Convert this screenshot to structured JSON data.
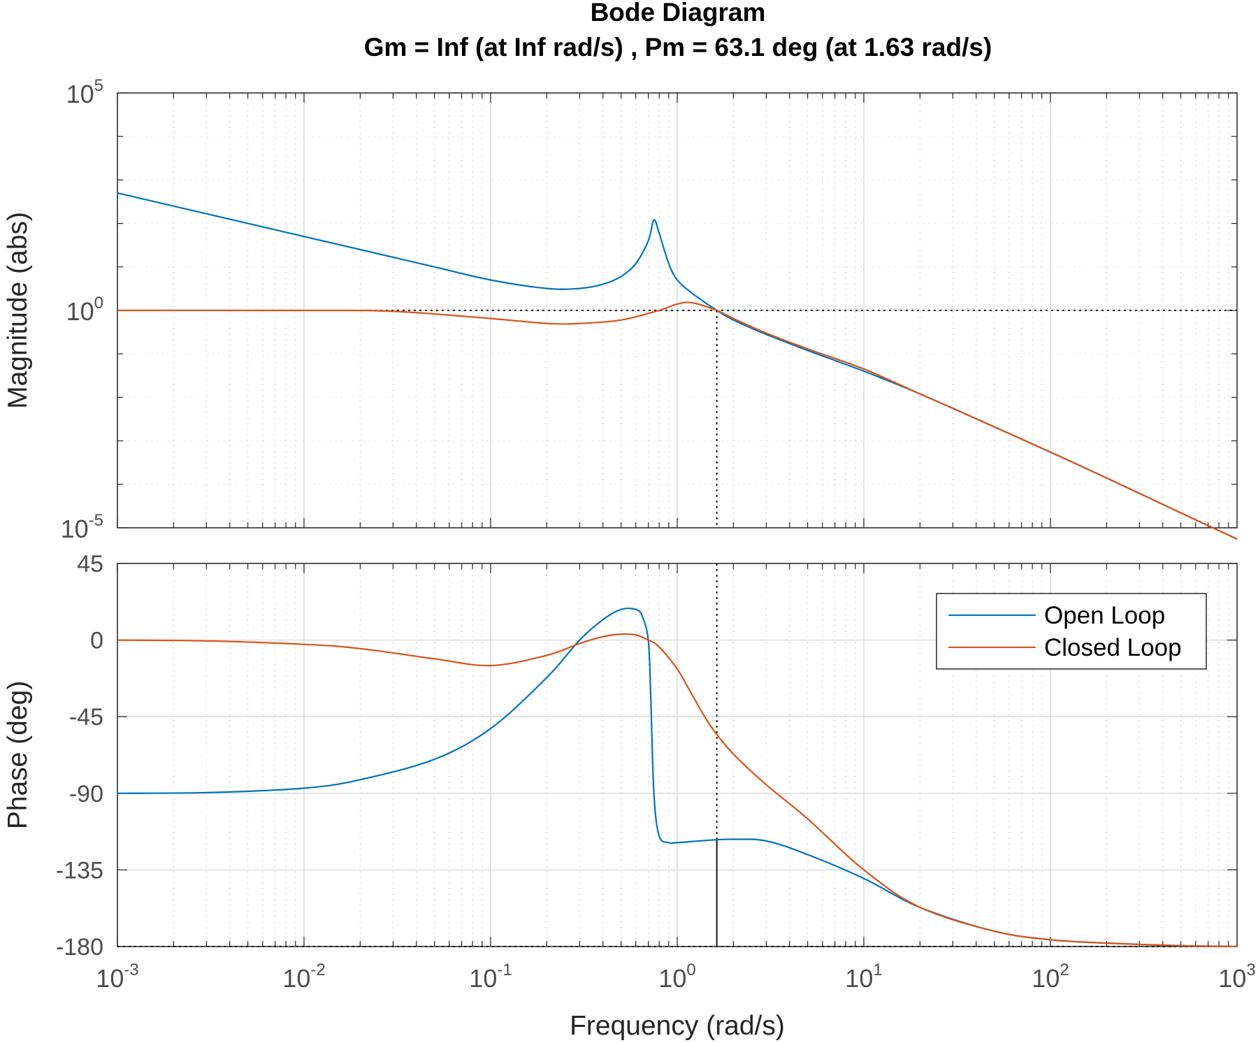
{
  "chart_data": {
    "type": "line",
    "title": "Bode Diagram",
    "subtitle": "Gm = Inf  (at Inf rad/s) ,  Pm = 63.1 deg (at 1.63 rad/s)",
    "xlabel": "Frequency  (rad/s)",
    "xscale": "log",
    "xlim": [
      0.001,
      1000
    ],
    "x_ticks": [
      {
        "base": "10",
        "exp": "-3"
      },
      {
        "base": "10",
        "exp": "-2"
      },
      {
        "base": "10",
        "exp": "-1"
      },
      {
        "base": "10",
        "exp": "0"
      },
      {
        "base": "10",
        "exp": "1"
      },
      {
        "base": "10",
        "exp": "2"
      },
      {
        "base": "10",
        "exp": "3"
      }
    ],
    "grid": true,
    "crossover_frequency": 1.63,
    "colors": {
      "open_loop": "#0072BD",
      "closed_loop": "#D95319"
    },
    "magnitude": {
      "ylabel": "Magnitude (abs)",
      "yscale": "log",
      "ylim": [
        1e-05,
        100000
      ],
      "y_ticks": [
        {
          "base": "10",
          "exp": "5"
        },
        {
          "base": "10",
          "exp": "0"
        },
        {
          "base": "10",
          "exp": "-5"
        }
      ],
      "series": [
        {
          "name": "Open Loop",
          "x": [
            0.001,
            0.002,
            0.005,
            0.01,
            0.02,
            0.05,
            0.1,
            0.2,
            0.3,
            0.4,
            0.5,
            0.6,
            0.7,
            0.75,
            0.8,
            0.9,
            1.0,
            1.2,
            1.63,
            2,
            3,
            5,
            10,
            20,
            50,
            100,
            200,
            500,
            1000
          ],
          "y": [
            500,
            250,
            100,
            50,
            25,
            10,
            5,
            3.2,
            3.2,
            4,
            6,
            12,
            40,
            120,
            60,
            12,
            5,
            2.5,
            1,
            0.6,
            0.28,
            0.12,
            0.04,
            0.012,
            0.0021,
            0.00055,
            0.00014,
            2.2e-05,
            5.5e-06
          ]
        },
        {
          "name": "Closed Loop",
          "x": [
            0.001,
            0.01,
            0.03,
            0.1,
            0.2,
            0.3,
            0.5,
            0.8,
            1.0,
            1.2,
            1.63,
            2,
            3,
            5,
            10,
            20,
            50,
            100,
            200,
            500,
            1000
          ],
          "y": [
            1,
            1,
            0.95,
            0.65,
            0.5,
            0.5,
            0.6,
            1.0,
            1.4,
            1.5,
            1.0,
            0.65,
            0.3,
            0.13,
            0.045,
            0.012,
            0.0021,
            0.00055,
            0.00014,
            2.2e-05,
            5.5e-06
          ]
        }
      ]
    },
    "phase": {
      "ylabel": "Phase (deg)",
      "ylim": [
        -180,
        45
      ],
      "y_ticks": [
        "45",
        "0",
        "-45",
        "-90",
        "-135",
        "-180"
      ],
      "series": [
        {
          "name": "Open Loop",
          "x": [
            0.001,
            0.003,
            0.01,
            0.02,
            0.05,
            0.1,
            0.2,
            0.3,
            0.4,
            0.5,
            0.6,
            0.65,
            0.7,
            0.72,
            0.75,
            0.8,
            0.9,
            1.0,
            1.5,
            2,
            3,
            5,
            10,
            20,
            50,
            100,
            200,
            500,
            1000
          ],
          "y": [
            -90,
            -89.6,
            -87,
            -82,
            -70,
            -52,
            -22,
            0,
            12,
            18,
            18,
            14,
            0,
            -30,
            -90,
            -115,
            -119,
            -119,
            -117.5,
            -117,
            -118,
            -126,
            -140,
            -157,
            -171,
            -176,
            -178,
            -179.5,
            -180
          ]
        },
        {
          "name": "Closed Loop",
          "x": [
            0.001,
            0.003,
            0.01,
            0.02,
            0.05,
            0.1,
            0.2,
            0.3,
            0.4,
            0.5,
            0.6,
            0.7,
            0.8,
            1.0,
            1.2,
            1.5,
            2,
            3,
            5,
            10,
            20,
            50,
            100,
            200,
            500,
            1000
          ],
          "y": [
            0,
            -0.5,
            -2.5,
            -5,
            -11,
            -15,
            -9,
            -2,
            2,
            3.5,
            3,
            0,
            -4,
            -17,
            -32,
            -50,
            -67,
            -85,
            -105,
            -135,
            -157,
            -171,
            -176,
            -178,
            -179.5,
            -180
          ]
        }
      ]
    },
    "legend": {
      "entries": [
        "Open Loop",
        "Closed Loop"
      ],
      "placement": "top-right of phase panel"
    }
  }
}
